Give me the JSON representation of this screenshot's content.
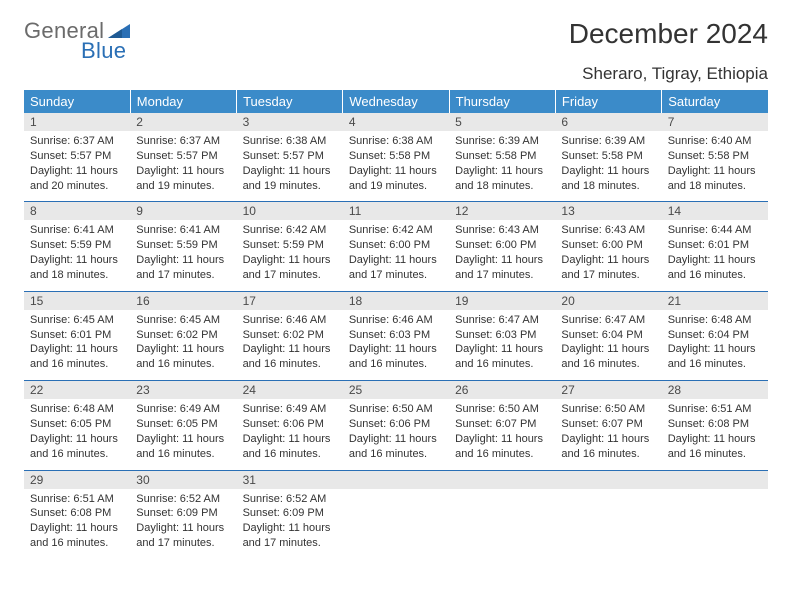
{
  "branding": {
    "logo_word1": "General",
    "logo_word2": "Blue",
    "logo_color_gray": "#6b6b6b",
    "logo_color_blue": "#2a6fb5",
    "triangle_color": "#2a6fb5"
  },
  "header": {
    "title": "December 2024",
    "location": "Sheraro, Tigray, Ethiopia"
  },
  "colors": {
    "header_bg": "#3b8bc9",
    "header_text": "#ffffff",
    "daynum_bg": "#e8e8e8",
    "daynum_text": "#4a4a4a",
    "cell_text": "#333333",
    "rule": "#2a6fb5"
  },
  "weekdays": [
    "Sunday",
    "Monday",
    "Tuesday",
    "Wednesday",
    "Thursday",
    "Friday",
    "Saturday"
  ],
  "days": {
    "1": {
      "sunrise": "6:37 AM",
      "sunset": "5:57 PM",
      "daylight": "11 hours and 20 minutes."
    },
    "2": {
      "sunrise": "6:37 AM",
      "sunset": "5:57 PM",
      "daylight": "11 hours and 19 minutes."
    },
    "3": {
      "sunrise": "6:38 AM",
      "sunset": "5:57 PM",
      "daylight": "11 hours and 19 minutes."
    },
    "4": {
      "sunrise": "6:38 AM",
      "sunset": "5:58 PM",
      "daylight": "11 hours and 19 minutes."
    },
    "5": {
      "sunrise": "6:39 AM",
      "sunset": "5:58 PM",
      "daylight": "11 hours and 18 minutes."
    },
    "6": {
      "sunrise": "6:39 AM",
      "sunset": "5:58 PM",
      "daylight": "11 hours and 18 minutes."
    },
    "7": {
      "sunrise": "6:40 AM",
      "sunset": "5:58 PM",
      "daylight": "11 hours and 18 minutes."
    },
    "8": {
      "sunrise": "6:41 AM",
      "sunset": "5:59 PM",
      "daylight": "11 hours and 18 minutes."
    },
    "9": {
      "sunrise": "6:41 AM",
      "sunset": "5:59 PM",
      "daylight": "11 hours and 17 minutes."
    },
    "10": {
      "sunrise": "6:42 AM",
      "sunset": "5:59 PM",
      "daylight": "11 hours and 17 minutes."
    },
    "11": {
      "sunrise": "6:42 AM",
      "sunset": "6:00 PM",
      "daylight": "11 hours and 17 minutes."
    },
    "12": {
      "sunrise": "6:43 AM",
      "sunset": "6:00 PM",
      "daylight": "11 hours and 17 minutes."
    },
    "13": {
      "sunrise": "6:43 AM",
      "sunset": "6:00 PM",
      "daylight": "11 hours and 17 minutes."
    },
    "14": {
      "sunrise": "6:44 AM",
      "sunset": "6:01 PM",
      "daylight": "11 hours and 16 minutes."
    },
    "15": {
      "sunrise": "6:45 AM",
      "sunset": "6:01 PM",
      "daylight": "11 hours and 16 minutes."
    },
    "16": {
      "sunrise": "6:45 AM",
      "sunset": "6:02 PM",
      "daylight": "11 hours and 16 minutes."
    },
    "17": {
      "sunrise": "6:46 AM",
      "sunset": "6:02 PM",
      "daylight": "11 hours and 16 minutes."
    },
    "18": {
      "sunrise": "6:46 AM",
      "sunset": "6:03 PM",
      "daylight": "11 hours and 16 minutes."
    },
    "19": {
      "sunrise": "6:47 AM",
      "sunset": "6:03 PM",
      "daylight": "11 hours and 16 minutes."
    },
    "20": {
      "sunrise": "6:47 AM",
      "sunset": "6:04 PM",
      "daylight": "11 hours and 16 minutes."
    },
    "21": {
      "sunrise": "6:48 AM",
      "sunset": "6:04 PM",
      "daylight": "11 hours and 16 minutes."
    },
    "22": {
      "sunrise": "6:48 AM",
      "sunset": "6:05 PM",
      "daylight": "11 hours and 16 minutes."
    },
    "23": {
      "sunrise": "6:49 AM",
      "sunset": "6:05 PM",
      "daylight": "11 hours and 16 minutes."
    },
    "24": {
      "sunrise": "6:49 AM",
      "sunset": "6:06 PM",
      "daylight": "11 hours and 16 minutes."
    },
    "25": {
      "sunrise": "6:50 AM",
      "sunset": "6:06 PM",
      "daylight": "11 hours and 16 minutes."
    },
    "26": {
      "sunrise": "6:50 AM",
      "sunset": "6:07 PM",
      "daylight": "11 hours and 16 minutes."
    },
    "27": {
      "sunrise": "6:50 AM",
      "sunset": "6:07 PM",
      "daylight": "11 hours and 16 minutes."
    },
    "28": {
      "sunrise": "6:51 AM",
      "sunset": "6:08 PM",
      "daylight": "11 hours and 16 minutes."
    },
    "29": {
      "sunrise": "6:51 AM",
      "sunset": "6:08 PM",
      "daylight": "11 hours and 16 minutes."
    },
    "30": {
      "sunrise": "6:52 AM",
      "sunset": "6:09 PM",
      "daylight": "11 hours and 17 minutes."
    },
    "31": {
      "sunrise": "6:52 AM",
      "sunset": "6:09 PM",
      "daylight": "11 hours and 17 minutes."
    }
  },
  "weeks": [
    [
      1,
      2,
      3,
      4,
      5,
      6,
      7
    ],
    [
      8,
      9,
      10,
      11,
      12,
      13,
      14
    ],
    [
      15,
      16,
      17,
      18,
      19,
      20,
      21
    ],
    [
      22,
      23,
      24,
      25,
      26,
      27,
      28
    ],
    [
      29,
      30,
      31,
      null,
      null,
      null,
      null
    ]
  ],
  "labels": {
    "sunrise": "Sunrise:",
    "sunset": "Sunset:",
    "daylight": "Daylight:"
  }
}
